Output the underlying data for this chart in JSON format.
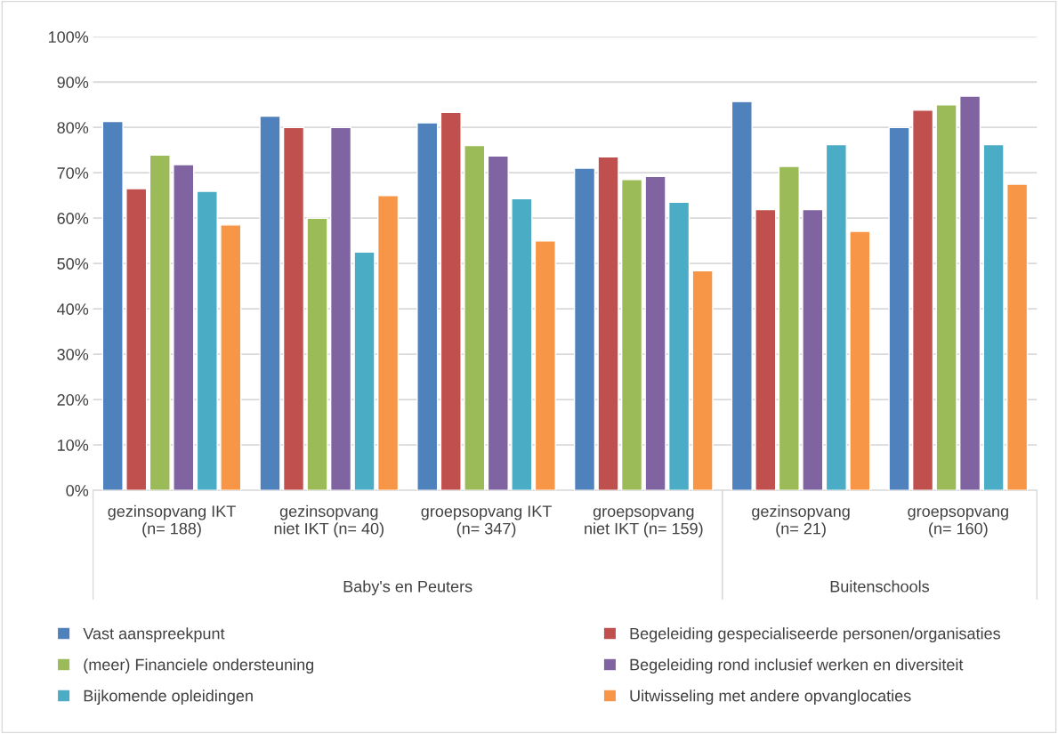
{
  "chart_data": {
    "type": "bar",
    "categories": [
      "gezinsopvang IKT\n(n= 188)",
      "gezinsopvang\nniet IKT (n= 40)",
      "groepsopvang IKT\n(n= 347)",
      "groepsopvang\nniet IKT (n= 159)",
      "gezinsopvang\n(n= 21)",
      "groepsopvang\n(n= 160)"
    ],
    "series": [
      {
        "name": "Vast aanspreekpunt",
        "color": "#4f81bd",
        "values": [
          81.3,
          82.5,
          81.0,
          71.0,
          85.7,
          80.0
        ]
      },
      {
        "name": "Begeleiding gespecialiseerde personen/organisaties",
        "color": "#c0504d",
        "values": [
          66.5,
          80.0,
          83.3,
          73.5,
          61.9,
          83.8
        ]
      },
      {
        "name": "(meer) Financiele ondersteuning",
        "color": "#9bbb59",
        "values": [
          73.9,
          60.0,
          76.0,
          68.5,
          71.4,
          85.0
        ]
      },
      {
        "name": "Begeleiding rond inclusief werken en diversiteit",
        "color": "#8064a2",
        "values": [
          71.8,
          80.0,
          73.7,
          69.2,
          61.9,
          86.9
        ]
      },
      {
        "name": "Bijkomende opleidingen",
        "color": "#4bacc6",
        "values": [
          65.9,
          52.5,
          64.3,
          63.5,
          76.2,
          76.2
        ]
      },
      {
        "name": "Uitwisseling met andere opvanglocaties",
        "color": "#f79646",
        "values": [
          58.5,
          65.0,
          55.0,
          48.4,
          57.1,
          67.5
        ]
      }
    ],
    "annotations": [
      "Baby's en Peuters",
      "Buitenschools"
    ],
    "ylim": [
      0,
      100
    ],
    "yticks": [
      {
        "value": 0,
        "label": "0%"
      },
      {
        "value": 10,
        "label": "10%"
      },
      {
        "value": 20,
        "label": "20%"
      },
      {
        "value": 30,
        "label": "30%"
      },
      {
        "value": 40,
        "label": "40%"
      },
      {
        "value": 50,
        "label": "50%"
      },
      {
        "value": 60,
        "label": "60%"
      },
      {
        "value": 70,
        "label": "70%"
      },
      {
        "value": 80,
        "label": "80%"
      },
      {
        "value": 90,
        "label": "90%"
      },
      {
        "value": 100,
        "label": "100%"
      }
    ],
    "grid": "y",
    "legend": "bottom"
  }
}
